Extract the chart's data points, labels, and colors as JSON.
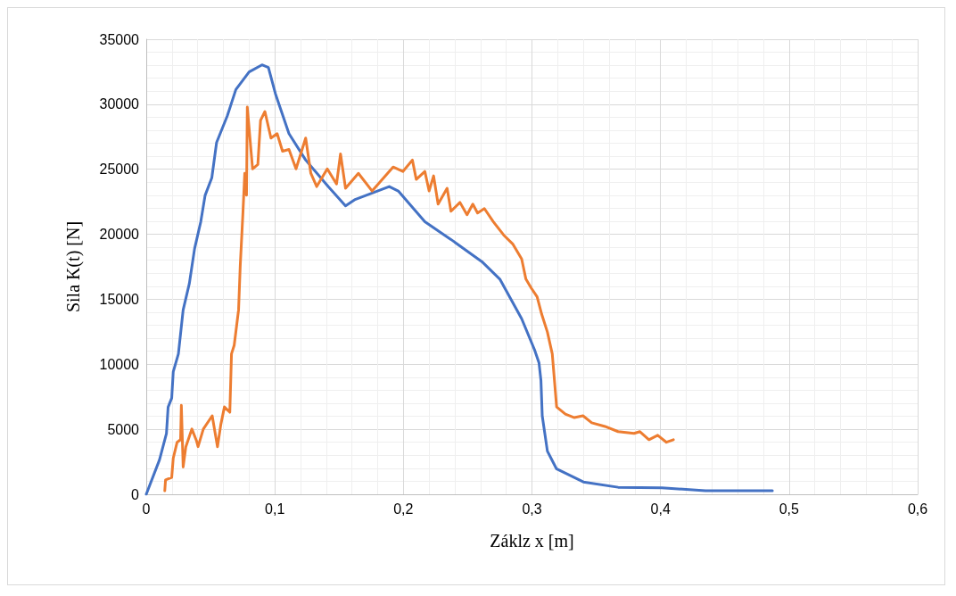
{
  "chart_data": {
    "type": "line",
    "xlabel": "Záklz x [m]",
    "ylabel": "Sila K(t) [N]",
    "xlim": [
      0,
      0.6
    ],
    "xticks": [
      0,
      {
        "value": 0.1,
        "label": "0,1"
      },
      {
        "value": 0.2,
        "label": "0,2"
      },
      {
        "value": 0.3,
        "label": "0,3"
      },
      {
        "value": 0.4,
        "label": "0,4"
      },
      {
        "value": 0.5,
        "label": "0,5"
      },
      {
        "value": 0.6,
        "label": "0,6"
      }
    ],
    "ylim": [
      0,
      35000
    ],
    "yticks": [
      0,
      5000,
      10000,
      15000,
      20000,
      25000,
      30000,
      35000
    ],
    "grid": true,
    "marker": "none",
    "line_style": "solid",
    "series": [
      {
        "color": "#4472c4",
        "x": [
          0,
          0.0103,
          0.0157,
          0.017,
          0.0198,
          0.021,
          0.025,
          0.0287,
          0.0335,
          0.0376,
          0.0424,
          0.0458,
          0.051,
          0.0547,
          0.063,
          0.0697,
          0.08,
          0.09,
          0.095,
          0.1005,
          0.111,
          0.124,
          0.1415,
          0.155,
          0.162,
          0.189,
          0.196,
          0.2167,
          0.237,
          0.261,
          0.275,
          0.292,
          0.302,
          0.3055,
          0.307,
          0.308,
          0.312,
          0.319,
          0.34,
          0.367,
          0.401,
          0.435,
          0.47,
          0.487
        ],
        "values": [
          0,
          2650,
          4680,
          6700,
          7400,
          9430,
          10800,
          14180,
          16200,
          18900,
          20960,
          23000,
          24350,
          27060,
          29100,
          31130,
          32490,
          33030,
          32830,
          30800,
          27740,
          25710,
          23670,
          22180,
          22650,
          23670,
          23330,
          20960,
          19600,
          17900,
          16550,
          13500,
          11120,
          10100,
          8750,
          6040,
          3320,
          1970,
          950,
          540,
          500,
          270,
          270,
          270
        ]
      },
      {
        "color": "#ed7d31",
        "x": [
          0.0144,
          0.015,
          0.0198,
          0.021,
          0.024,
          0.0267,
          0.0273,
          0.0287,
          0.0308,
          0.0355,
          0.039,
          0.0403,
          0.0444,
          0.0513,
          0.0554,
          0.058,
          0.0608,
          0.065,
          0.0663,
          0.0684,
          0.0718,
          0.0731,
          0.0752,
          0.0766,
          0.078,
          0.0786,
          0.0827,
          0.0868,
          0.0889,
          0.0923,
          0.097,
          0.1018,
          0.106,
          0.111,
          0.1165,
          0.124,
          0.128,
          0.1326,
          0.1408,
          0.148,
          0.1511,
          0.155,
          0.165,
          0.1757,
          0.192,
          0.1996,
          0.207,
          0.21,
          0.2167,
          0.22,
          0.2235,
          0.227,
          0.234,
          0.237,
          0.244,
          0.2495,
          0.254,
          0.2577,
          0.263,
          0.27,
          0.278,
          0.285,
          0.292,
          0.2953,
          0.2994,
          0.304,
          0.3076,
          0.312,
          0.3158,
          0.3192,
          0.326,
          0.333,
          0.3397,
          0.3465,
          0.3568,
          0.367,
          0.3794,
          0.384,
          0.391,
          0.3978,
          0.4046,
          0.41
        ],
        "values": [
          270,
          1100,
          1300,
          2780,
          4000,
          4200,
          6850,
          2100,
          3660,
          5020,
          4140,
          3660,
          5020,
          6040,
          3660,
          5360,
          6720,
          6310,
          10800,
          11460,
          14180,
          17570,
          21640,
          24690,
          23000,
          29780,
          25030,
          25370,
          28760,
          29440,
          27400,
          27740,
          26390,
          26520,
          25030,
          27400,
          24690,
          23670,
          25030,
          23870,
          26180,
          23540,
          24690,
          23330,
          25170,
          24830,
          25710,
          24220,
          24830,
          23330,
          24490,
          22320,
          23540,
          21770,
          22450,
          21500,
          22320,
          21640,
          21980,
          20960,
          19940,
          19260,
          18100,
          16550,
          15870,
          15190,
          13840,
          12480,
          10800,
          6720,
          6170,
          5900,
          6040,
          5500,
          5220,
          4820,
          4680,
          4820,
          4200,
          4540,
          4000,
          4200
        ]
      }
    ]
  }
}
